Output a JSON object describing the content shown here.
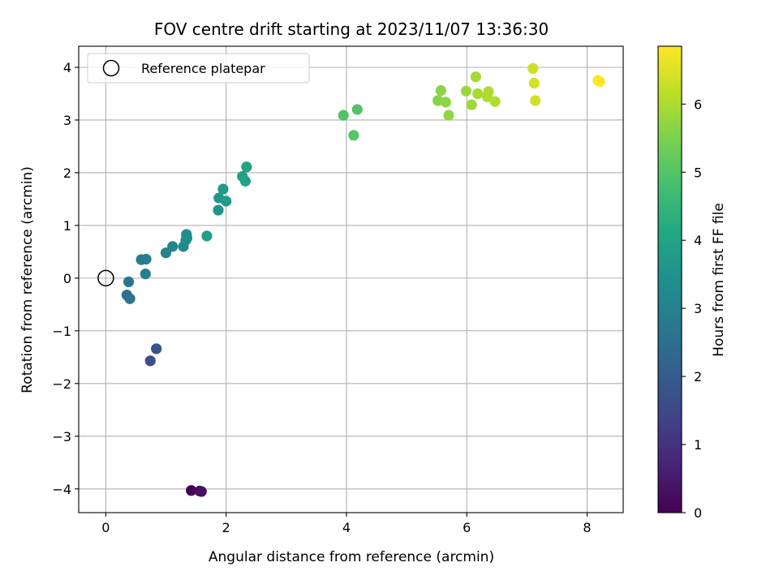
{
  "chart_data": {
    "type": "scatter",
    "title": "FOV centre drift starting at 2023/11/07 13:36:30",
    "xlabel": "Angular distance from reference (arcmin)",
    "ylabel": "Rotation from reference (arcmin)",
    "xlim": [
      -0.45,
      8.6
    ],
    "ylim": [
      -4.45,
      4.4
    ],
    "xticks": [
      0,
      2,
      4,
      6,
      8
    ],
    "yticks": [
      -4,
      -3,
      -2,
      -1,
      0,
      1,
      2,
      3,
      4
    ],
    "xtick_labels": [
      "0",
      "2",
      "4",
      "6",
      "8"
    ],
    "ytick_labels": [
      "−4",
      "−3",
      "−2",
      "−1",
      "0",
      "1",
      "2",
      "3",
      "4"
    ],
    "grid": true,
    "colormap": "viridis",
    "colorbar": {
      "label": "Hours from first FF file",
      "range": [
        0,
        6.85
      ],
      "ticks": [
        0,
        1,
        2,
        3,
        4,
        5,
        6
      ],
      "tick_labels": [
        "0",
        "1",
        "2",
        "3",
        "4",
        "5",
        "6"
      ]
    },
    "legend": {
      "placement": "upper-left",
      "entries": [
        "Reference platepar"
      ]
    },
    "reference": {
      "x": 0,
      "y": 0,
      "label": "Reference platepar"
    },
    "points": [
      {
        "x": 1.42,
        "y": -4.03,
        "h": 0.05
      },
      {
        "x": 1.56,
        "y": -4.04,
        "h": 0.2
      },
      {
        "x": 1.59,
        "y": -4.05,
        "h": 0.3
      },
      {
        "x": 0.74,
        "y": -1.57,
        "h": 1.65
      },
      {
        "x": 0.84,
        "y": -1.34,
        "h": 1.75
      },
      {
        "x": 0.35,
        "y": -0.32,
        "h": 2.5
      },
      {
        "x": 0.4,
        "y": -0.39,
        "h": 2.6
      },
      {
        "x": 0.38,
        "y": -0.07,
        "h": 2.7
      },
      {
        "x": 0.59,
        "y": 0.35,
        "h": 2.8
      },
      {
        "x": 0.67,
        "y": 0.36,
        "h": 2.9
      },
      {
        "x": 0.66,
        "y": 0.08,
        "h": 2.95
      },
      {
        "x": 1.0,
        "y": 0.48,
        "h": 3.05
      },
      {
        "x": 1.11,
        "y": 0.6,
        "h": 3.15
      },
      {
        "x": 1.29,
        "y": 0.6,
        "h": 3.25
      },
      {
        "x": 1.33,
        "y": 0.72,
        "h": 3.3
      },
      {
        "x": 1.34,
        "y": 0.83,
        "h": 3.35
      },
      {
        "x": 1.35,
        "y": 0.76,
        "h": 3.4
      },
      {
        "x": 1.87,
        "y": 1.29,
        "h": 3.55
      },
      {
        "x": 1.88,
        "y": 1.52,
        "h": 3.6
      },
      {
        "x": 1.95,
        "y": 1.69,
        "h": 3.7
      },
      {
        "x": 2.0,
        "y": 1.46,
        "h": 3.75
      },
      {
        "x": 1.68,
        "y": 0.8,
        "h": 3.8
      },
      {
        "x": 2.27,
        "y": 1.93,
        "h": 3.9
      },
      {
        "x": 2.32,
        "y": 1.84,
        "h": 3.95
      },
      {
        "x": 2.34,
        "y": 2.11,
        "h": 4.0
      },
      {
        "x": 3.95,
        "y": 3.09,
        "h": 4.95
      },
      {
        "x": 4.18,
        "y": 3.2,
        "h": 5.0
      },
      {
        "x": 4.12,
        "y": 2.71,
        "h": 5.05
      },
      {
        "x": 5.52,
        "y": 3.37,
        "h": 5.6
      },
      {
        "x": 5.57,
        "y": 3.56,
        "h": 5.65
      },
      {
        "x": 5.65,
        "y": 3.34,
        "h": 5.7
      },
      {
        "x": 5.7,
        "y": 3.09,
        "h": 5.72
      },
      {
        "x": 5.99,
        "y": 3.55,
        "h": 5.8
      },
      {
        "x": 6.08,
        "y": 3.29,
        "h": 5.85
      },
      {
        "x": 6.15,
        "y": 3.82,
        "h": 5.9
      },
      {
        "x": 6.18,
        "y": 3.5,
        "h": 5.95
      },
      {
        "x": 6.34,
        "y": 3.44,
        "h": 6.0
      },
      {
        "x": 6.36,
        "y": 3.54,
        "h": 6.02
      },
      {
        "x": 6.47,
        "y": 3.35,
        "h": 6.05
      },
      {
        "x": 7.1,
        "y": 3.98,
        "h": 6.35
      },
      {
        "x": 7.12,
        "y": 3.7,
        "h": 6.38
      },
      {
        "x": 7.14,
        "y": 3.37,
        "h": 6.4
      },
      {
        "x": 8.18,
        "y": 3.75,
        "h": 6.85
      },
      {
        "x": 8.21,
        "y": 3.73,
        "h": 6.85
      }
    ]
  }
}
